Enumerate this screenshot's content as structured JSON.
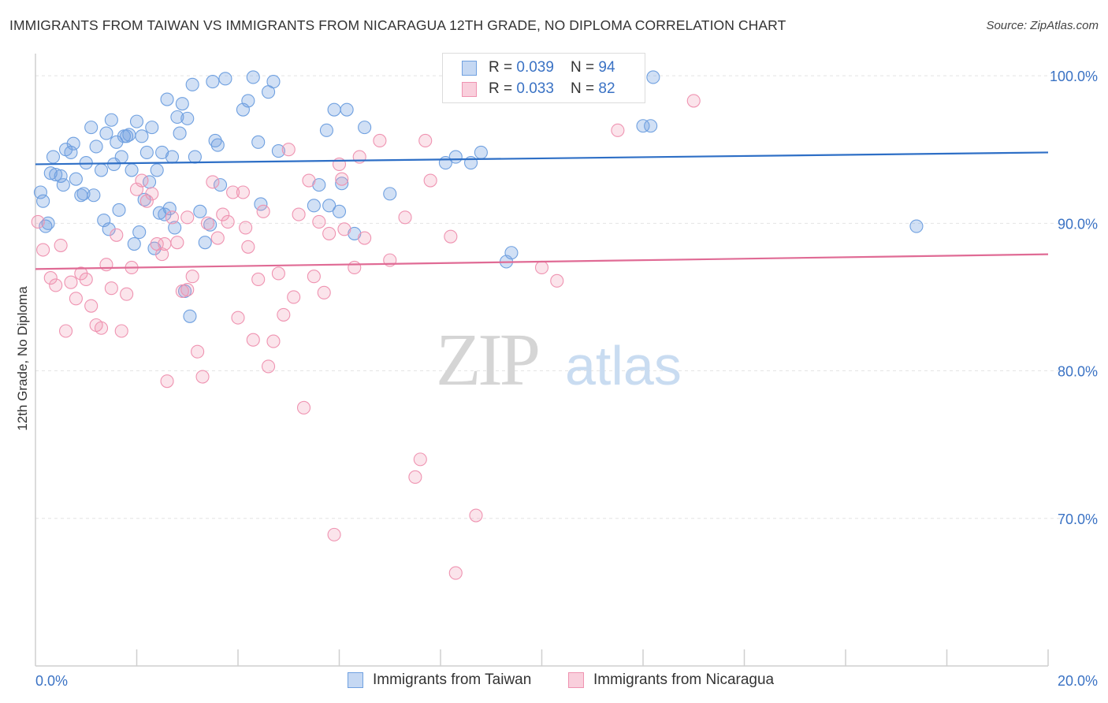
{
  "title": "IMMIGRANTS FROM TAIWAN VS IMMIGRANTS FROM NICARAGUA 12TH GRADE, NO DIPLOMA CORRELATION CHART",
  "source": "Source: ZipAtlas.com",
  "watermark": {
    "zip": "ZIP",
    "atlas": "atlas"
  },
  "colors": {
    "taiwan": "#6fa0e0",
    "nicaragua": "#ef93b1",
    "taiwan_line": "#2e6fc6",
    "nicaragua_line": "#e06b95",
    "axis_text": "#3a72c4"
  },
  "legend": {
    "taiwan": {
      "r_label": "R = ",
      "r_value": "0.039",
      "n_label": "N = ",
      "n_value": "94"
    },
    "nicaragua": {
      "r_label": "R = ",
      "r_value": "0.033",
      "n_label": "N = ",
      "n_value": "82"
    }
  },
  "chart_data": {
    "type": "scatter",
    "xlabel": "",
    "ylabel": "12th Grade, No Diploma",
    "xlim": [
      0,
      20
    ],
    "ylim": [
      60,
      101.5
    ],
    "x_tick_labels": [
      "0.0%",
      "20.0%"
    ],
    "y_ticks": [
      70,
      80,
      90,
      100
    ],
    "y_tick_labels": [
      "70.0%",
      "80.0%",
      "90.0%",
      "100.0%"
    ],
    "grid": true,
    "series": [
      {
        "name": "Immigrants from Taiwan",
        "color": "#6fa0e0",
        "trend": [
          [
            0,
            94.0
          ],
          [
            20,
            94.8
          ]
        ],
        "points": [
          [
            0.1,
            92.1
          ],
          [
            0.2,
            89.8
          ],
          [
            0.3,
            93.4
          ],
          [
            0.35,
            94.5
          ],
          [
            0.5,
            93.2
          ],
          [
            0.6,
            95.0
          ],
          [
            0.7,
            94.8
          ],
          [
            0.8,
            93.0
          ],
          [
            0.9,
            91.9
          ],
          [
            1.0,
            94.1
          ],
          [
            1.1,
            96.5
          ],
          [
            1.2,
            95.2
          ],
          [
            1.3,
            93.6
          ],
          [
            1.4,
            96.1
          ],
          [
            1.5,
            97.0
          ],
          [
            1.6,
            95.5
          ],
          [
            1.7,
            94.5
          ],
          [
            1.8,
            95.9
          ],
          [
            1.9,
            93.6
          ],
          [
            2.0,
            96.9
          ],
          [
            2.1,
            95.9
          ],
          [
            2.2,
            94.8
          ],
          [
            2.3,
            96.5
          ],
          [
            2.4,
            93.6
          ],
          [
            2.5,
            94.8
          ],
          [
            2.6,
            98.4
          ],
          [
            2.7,
            94.5
          ],
          [
            2.8,
            97.2
          ],
          [
            2.85,
            96.1
          ],
          [
            2.9,
            98.1
          ],
          [
            3.0,
            97.1
          ],
          [
            3.1,
            99.4
          ],
          [
            3.5,
            99.6
          ],
          [
            3.6,
            95.3
          ],
          [
            3.75,
            99.8
          ],
          [
            4.1,
            97.7
          ],
          [
            4.2,
            98.3
          ],
          [
            4.3,
            99.9
          ],
          [
            4.4,
            95.5
          ],
          [
            4.6,
            98.9
          ],
          [
            4.7,
            99.6
          ],
          [
            4.8,
            94.9
          ],
          [
            5.5,
            91.2
          ],
          [
            5.6,
            92.6
          ],
          [
            5.8,
            91.2
          ],
          [
            6.0,
            90.8
          ],
          [
            6.15,
            97.7
          ],
          [
            6.3,
            89.3
          ],
          [
            6.5,
            96.5
          ],
          [
            7.0,
            92.0
          ],
          [
            8.1,
            94.1
          ],
          [
            8.3,
            94.5
          ],
          [
            8.6,
            94.1
          ],
          [
            8.8,
            94.8
          ],
          [
            9.3,
            87.4
          ],
          [
            9.4,
            88.0
          ],
          [
            12.0,
            96.6
          ],
          [
            12.15,
            96.6
          ],
          [
            12.2,
            99.9
          ],
          [
            17.4,
            89.8
          ],
          [
            0.15,
            91.5
          ],
          [
            0.25,
            90.0
          ],
          [
            0.4,
            93.3
          ],
          [
            0.55,
            92.6
          ],
          [
            0.75,
            95.4
          ],
          [
            0.95,
            92.0
          ],
          [
            1.15,
            91.9
          ],
          [
            1.35,
            90.2
          ],
          [
            1.45,
            89.6
          ],
          [
            1.55,
            94.0
          ],
          [
            1.65,
            90.9
          ],
          [
            1.75,
            95.9
          ],
          [
            1.85,
            96.0
          ],
          [
            1.95,
            88.6
          ],
          [
            2.05,
            89.4
          ],
          [
            2.15,
            91.6
          ],
          [
            2.25,
            92.8
          ],
          [
            2.35,
            88.3
          ],
          [
            2.45,
            90.7
          ],
          [
            2.55,
            90.6
          ],
          [
            2.65,
            91.0
          ],
          [
            2.75,
            89.7
          ],
          [
            2.95,
            85.4
          ],
          [
            3.05,
            83.7
          ],
          [
            3.15,
            94.5
          ],
          [
            3.25,
            90.8
          ],
          [
            3.35,
            88.7
          ],
          [
            3.45,
            89.9
          ],
          [
            3.55,
            95.6
          ],
          [
            3.65,
            92.6
          ],
          [
            4.45,
            91.3
          ],
          [
            5.75,
            96.3
          ],
          [
            5.9,
            97.7
          ],
          [
            6.05,
            92.7
          ]
        ]
      },
      {
        "name": "Immigrants from Nicaragua",
        "color": "#ef93b1",
        "trend": [
          [
            0,
            86.9
          ],
          [
            20,
            87.9
          ]
        ],
        "points": [
          [
            0.05,
            90.1
          ],
          [
            0.15,
            88.2
          ],
          [
            0.3,
            86.3
          ],
          [
            0.4,
            85.8
          ],
          [
            0.5,
            88.5
          ],
          [
            0.6,
            82.7
          ],
          [
            0.7,
            86.0
          ],
          [
            0.8,
            84.9
          ],
          [
            0.9,
            86.6
          ],
          [
            1.0,
            86.2
          ],
          [
            1.1,
            84.4
          ],
          [
            1.2,
            83.1
          ],
          [
            1.3,
            82.9
          ],
          [
            1.4,
            87.2
          ],
          [
            1.5,
            85.6
          ],
          [
            1.6,
            89.2
          ],
          [
            1.7,
            82.7
          ],
          [
            1.8,
            85.2
          ],
          [
            1.9,
            87.0
          ],
          [
            2.0,
            92.3
          ],
          [
            2.1,
            92.9
          ],
          [
            2.2,
            91.5
          ],
          [
            2.3,
            92.0
          ],
          [
            2.4,
            88.6
          ],
          [
            2.5,
            87.9
          ],
          [
            2.6,
            79.3
          ],
          [
            2.7,
            90.4
          ],
          [
            2.8,
            88.7
          ],
          [
            2.9,
            85.4
          ],
          [
            3.0,
            90.4
          ],
          [
            3.1,
            86.4
          ],
          [
            3.2,
            81.3
          ],
          [
            3.3,
            79.6
          ],
          [
            3.4,
            90.0
          ],
          [
            3.5,
            92.8
          ],
          [
            3.6,
            89.0
          ],
          [
            3.7,
            90.6
          ],
          [
            3.8,
            90.1
          ],
          [
            3.9,
            92.1
          ],
          [
            4.0,
            83.6
          ],
          [
            4.1,
            92.1
          ],
          [
            4.2,
            88.4
          ],
          [
            4.3,
            82.1
          ],
          [
            4.4,
            86.2
          ],
          [
            4.5,
            90.8
          ],
          [
            4.6,
            80.3
          ],
          [
            4.7,
            82.0
          ],
          [
            4.8,
            86.6
          ],
          [
            4.9,
            83.8
          ],
          [
            5.0,
            95.0
          ],
          [
            5.1,
            85.0
          ],
          [
            5.2,
            90.6
          ],
          [
            5.3,
            77.5
          ],
          [
            5.4,
            92.9
          ],
          [
            5.5,
            86.4
          ],
          [
            5.6,
            90.1
          ],
          [
            5.7,
            85.3
          ],
          [
            5.8,
            89.3
          ],
          [
            5.9,
            68.9
          ],
          [
            6.0,
            94.0
          ],
          [
            6.1,
            89.6
          ],
          [
            6.3,
            87.0
          ],
          [
            6.4,
            94.5
          ],
          [
            6.5,
            89.0
          ],
          [
            6.8,
            95.6
          ],
          [
            7.0,
            87.5
          ],
          [
            7.3,
            90.4
          ],
          [
            7.5,
            72.8
          ],
          [
            7.6,
            74.0
          ],
          [
            7.7,
            95.6
          ],
          [
            7.8,
            92.9
          ],
          [
            8.2,
            89.1
          ],
          [
            8.3,
            66.3
          ],
          [
            8.7,
            70.2
          ],
          [
            10.0,
            87.0
          ],
          [
            10.3,
            86.1
          ],
          [
            11.5,
            96.3
          ],
          [
            13.0,
            98.3
          ],
          [
            6.05,
            93.0
          ],
          [
            3.0,
            85.5
          ],
          [
            2.55,
            88.6
          ],
          [
            4.15,
            89.7
          ]
        ]
      }
    ]
  },
  "bottom_legend": {
    "taiwan": "Immigrants from Taiwan",
    "nicaragua": "Immigrants from Nicaragua"
  }
}
